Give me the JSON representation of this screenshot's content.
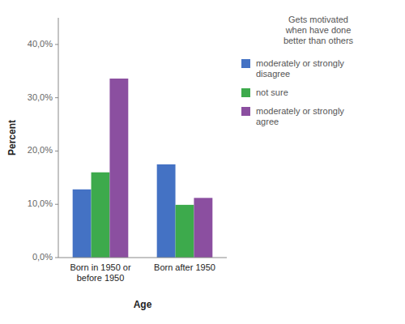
{
  "chart_data": {
    "type": "bar",
    "categories": [
      "Born in 1950 or before 1950",
      "Born after 1950"
    ],
    "series": [
      {
        "name": "moderately or strongly\ndisagree",
        "color": "#4472C4",
        "values": [
          12.8,
          17.5
        ]
      },
      {
        "name": "not sure",
        "color": "#3DAA4C",
        "values": [
          16.0,
          9.9
        ]
      },
      {
        "name": "moderately or strongly\nagree",
        "color": "#8B4FA0",
        "values": [
          33.6,
          11.2
        ]
      }
    ],
    "xlabel": "Age",
    "ylabel": "Percent",
    "ylim": [
      0,
      45
    ],
    "yticks": [
      {
        "value": 0,
        "label": "0,0%"
      },
      {
        "value": 10,
        "label": "10,0%"
      },
      {
        "value": 20,
        "label": "20,0%"
      },
      {
        "value": 30,
        "label": "30,0%"
      },
      {
        "value": 40,
        "label": "40,0%"
      }
    ],
    "grid": false,
    "legend": "right",
    "legend_title": "Gets motivated\nwhen have done\nbetter than others"
  }
}
